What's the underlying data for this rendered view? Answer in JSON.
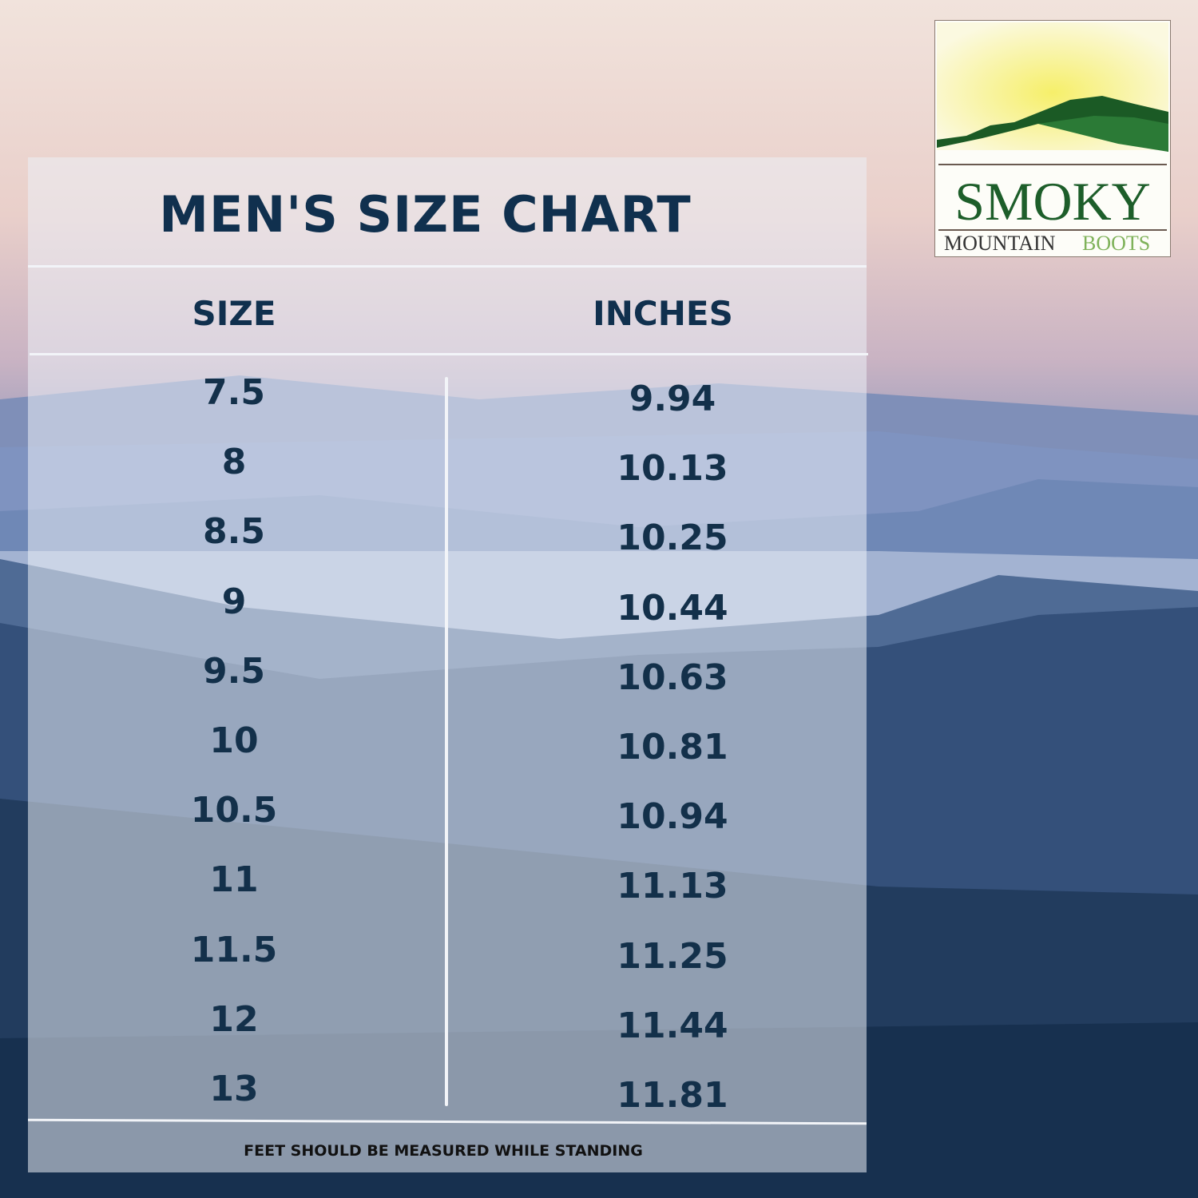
{
  "title": "MEN'S SIZE CHART",
  "headers": {
    "size": "SIZE",
    "inches": "INCHES"
  },
  "rows": [
    {
      "size": "7.5",
      "inches": "9.94"
    },
    {
      "size": "8",
      "inches": "10.13"
    },
    {
      "size": "8.5",
      "inches": "10.25"
    },
    {
      "size": "9",
      "inches": "10.44"
    },
    {
      "size": "9.5",
      "inches": "10.63"
    },
    {
      "size": "10",
      "inches": "10.81"
    },
    {
      "size": "10.5",
      "inches": "10.94"
    },
    {
      "size": "11",
      "inches": "11.13"
    },
    {
      "size": "11.5",
      "inches": "11.25"
    },
    {
      "size": "12",
      "inches": "11.44"
    },
    {
      "size": "13",
      "inches": "11.81"
    }
  ],
  "footer": "FEET SHOULD BE MEASURED WHILE STANDING",
  "logo": {
    "line1": "SMOKY",
    "line2a": "MOUNTAIN",
    "line2b": "BOOTS"
  },
  "colors": {
    "text": "#10304e",
    "logo_green": "#1d5e2a",
    "logo_light_green": "#7fb25a"
  }
}
